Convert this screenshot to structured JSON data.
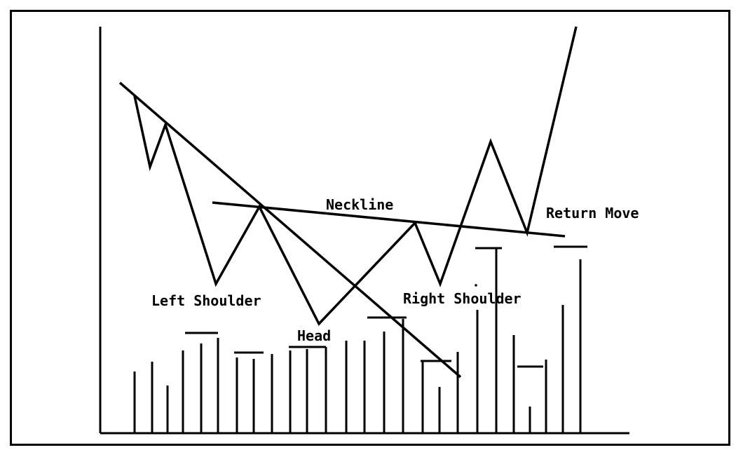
{
  "labels": {
    "neckline": "Neckline",
    "return_move": "Return Move",
    "left_shoulder": "Left Shoulder",
    "right_shoulder": "Right Shoulder",
    "head": "Head"
  },
  "colors": {
    "ink": "#000000",
    "background": "#ffffff"
  }
}
